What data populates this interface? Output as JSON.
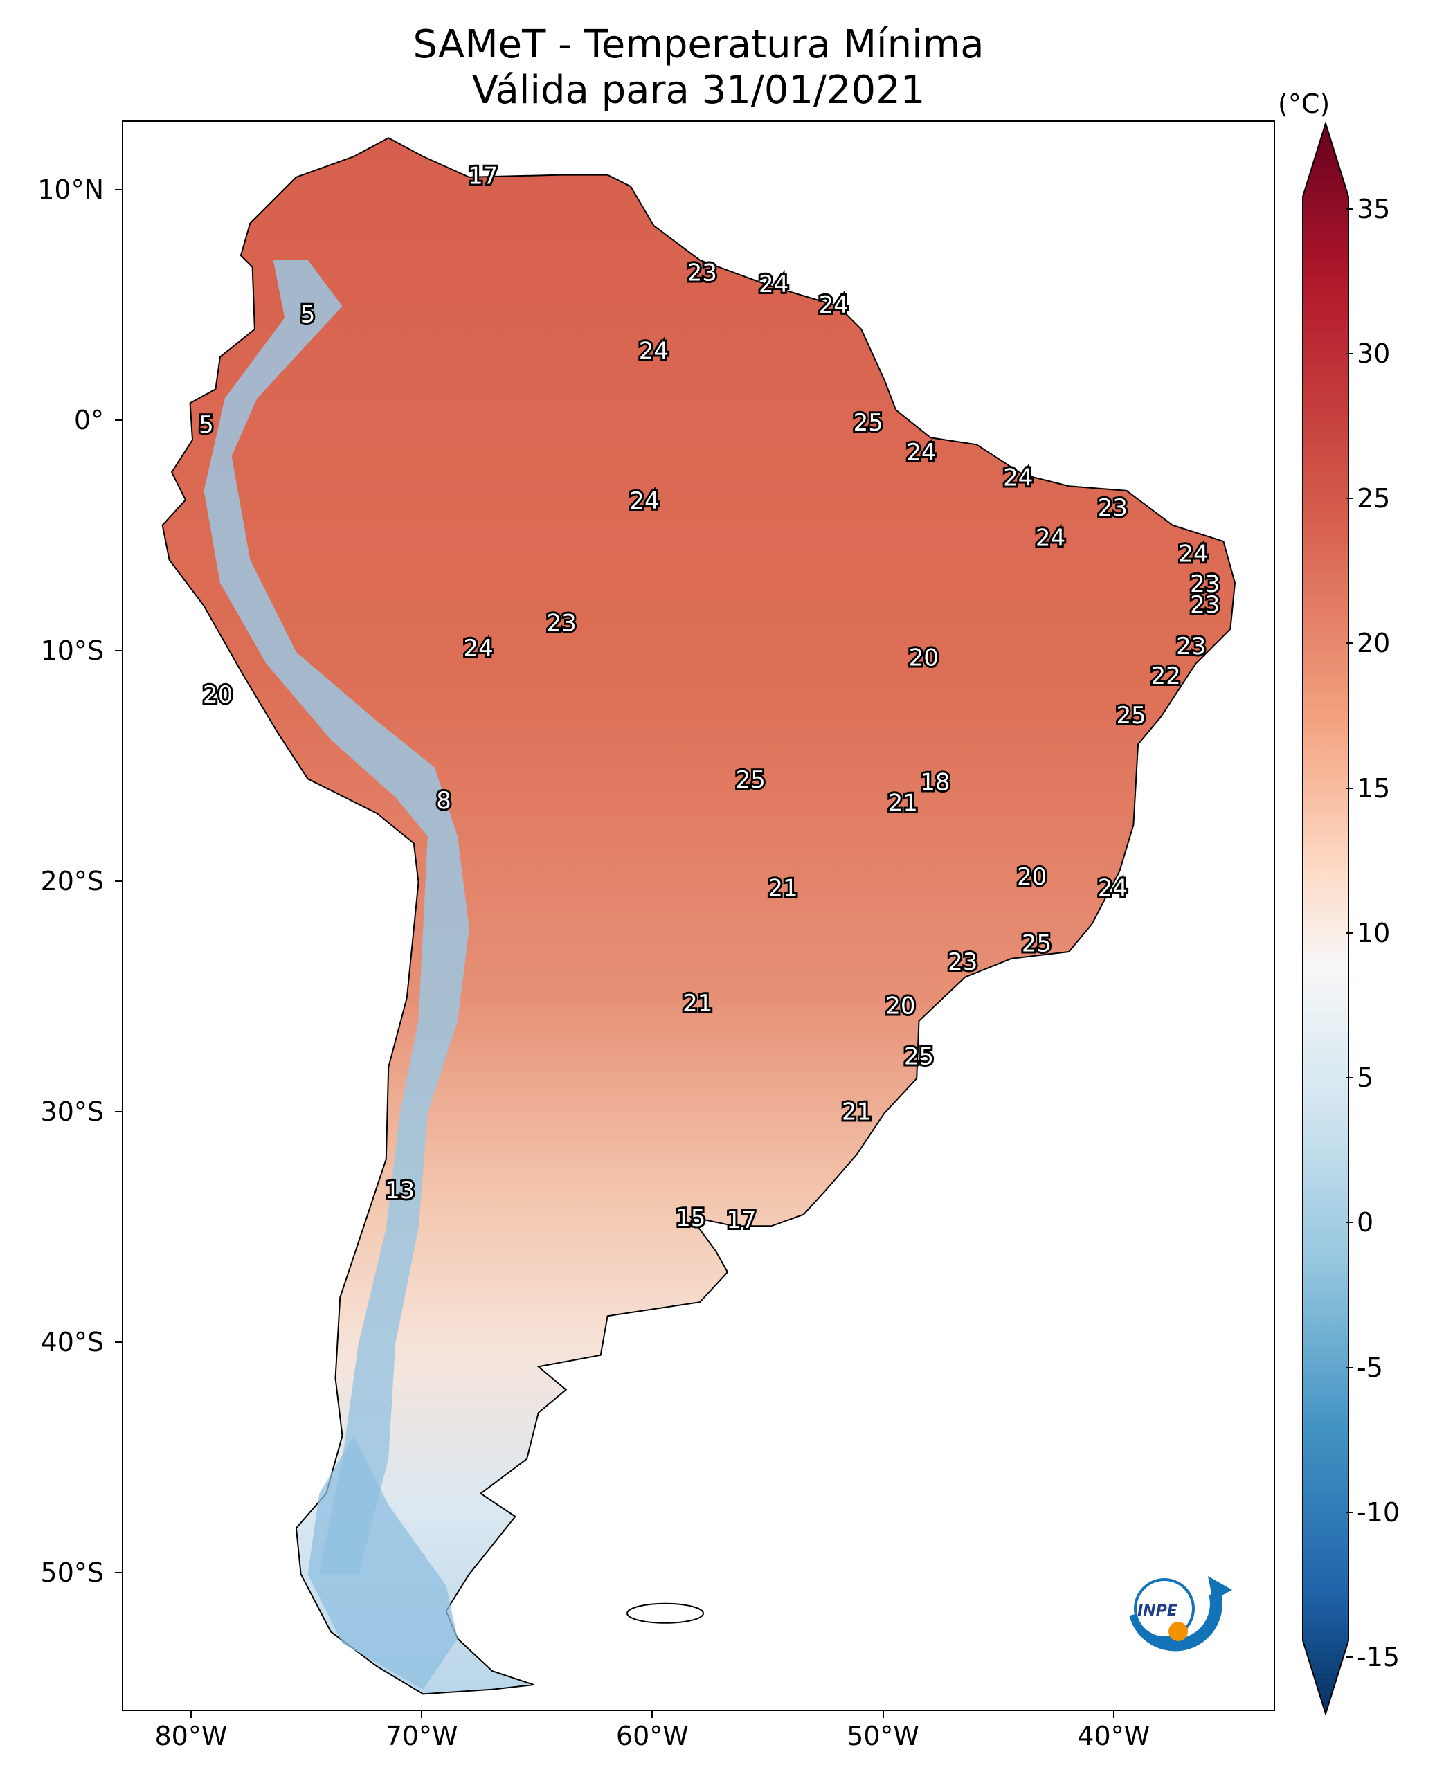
{
  "title": {
    "line1": "SAMeT - Temperatura Mínima",
    "line2": "Válida para 31/01/2021"
  },
  "axes": {
    "lat_ticks": [
      {
        "lat": 10,
        "label": "10°N"
      },
      {
        "lat": 0,
        "label": "0°"
      },
      {
        "lat": -10,
        "label": "10°S"
      },
      {
        "lat": -20,
        "label": "20°S"
      },
      {
        "lat": -30,
        "label": "30°S"
      },
      {
        "lat": -40,
        "label": "40°S"
      },
      {
        "lat": -50,
        "label": "50°S"
      }
    ],
    "lon_ticks": [
      {
        "lon": -80,
        "label": "80°W"
      },
      {
        "lon": -70,
        "label": "70°W"
      },
      {
        "lon": -60,
        "label": "60°W"
      },
      {
        "lon": -50,
        "label": "50°W"
      },
      {
        "lon": -40,
        "label": "40°W"
      }
    ],
    "lon_range": [
      -83,
      -33
    ],
    "lat_range": [
      -56,
      13
    ]
  },
  "colorbar": {
    "unit": "(°C)",
    "range": [
      -17,
      38
    ],
    "ticks": [
      35,
      30,
      25,
      20,
      15,
      10,
      5,
      0,
      -5,
      -10,
      -15
    ],
    "tick_labels": [
      "35",
      "30",
      "25",
      "20",
      "15",
      "10",
      "5",
      "0",
      "-5",
      "-10",
      "-15"
    ]
  },
  "colors": {
    "hot": "#d6604d",
    "warm": "#e08a6e",
    "mild": "#f4c3a8",
    "neutral": "#f7f2ef",
    "cool": "#a8cde4",
    "cold": "#4a91c4"
  },
  "station_labels": [
    {
      "value": "17",
      "lon": -67.4,
      "lat": 10.6
    },
    {
      "value": "23",
      "lon": -57.9,
      "lat": 6.4
    },
    {
      "value": "24",
      "lon": -54.8,
      "lat": 5.9
    },
    {
      "value": "24",
      "lon": -52.2,
      "lat": 5.0
    },
    {
      "value": "5",
      "lon": -75.0,
      "lat": 4.6
    },
    {
      "value": "24",
      "lon": -60.0,
      "lat": 3.0
    },
    {
      "value": "5",
      "lon": -79.4,
      "lat": -0.2
    },
    {
      "value": "25",
      "lon": -50.7,
      "lat": -0.1
    },
    {
      "value": "24",
      "lon": -48.4,
      "lat": -1.4
    },
    {
      "value": "24",
      "lon": -44.2,
      "lat": -2.5
    },
    {
      "value": "24",
      "lon": -60.4,
      "lat": -3.5
    },
    {
      "value": "23",
      "lon": -40.1,
      "lat": -3.8
    },
    {
      "value": "24",
      "lon": -42.8,
      "lat": -5.1
    },
    {
      "value": "24",
      "lon": -36.6,
      "lat": -5.8
    },
    {
      "value": "23",
      "lon": -36.1,
      "lat": -7.1
    },
    {
      "value": "23",
      "lon": -36.1,
      "lat": -8.0
    },
    {
      "value": "23",
      "lon": -64.0,
      "lat": -8.8
    },
    {
      "value": "23",
      "lon": -36.7,
      "lat": -9.8
    },
    {
      "value": "24",
      "lon": -67.6,
      "lat": -9.9
    },
    {
      "value": "20",
      "lon": -48.3,
      "lat": -10.3
    },
    {
      "value": "22",
      "lon": -37.8,
      "lat": -11.1
    },
    {
      "value": "20",
      "lon": -78.9,
      "lat": -11.9
    },
    {
      "value": "25",
      "lon": -39.3,
      "lat": -12.8
    },
    {
      "value": "25",
      "lon": -55.8,
      "lat": -15.6
    },
    {
      "value": "18",
      "lon": -47.8,
      "lat": -15.7
    },
    {
      "value": "8",
      "lon": -69.1,
      "lat": -16.5
    },
    {
      "value": "21",
      "lon": -49.2,
      "lat": -16.6
    },
    {
      "value": "20",
      "lon": -43.6,
      "lat": -19.8
    },
    {
      "value": "21",
      "lon": -54.4,
      "lat": -20.3
    },
    {
      "value": "24",
      "lon": -40.1,
      "lat": -20.3
    },
    {
      "value": "25",
      "lon": -43.4,
      "lat": -22.7
    },
    {
      "value": "23",
      "lon": -46.6,
      "lat": -23.5
    },
    {
      "value": "21",
      "lon": -58.1,
      "lat": -25.3
    },
    {
      "value": "20",
      "lon": -49.3,
      "lat": -25.4
    },
    {
      "value": "25",
      "lon": -48.5,
      "lat": -27.6
    },
    {
      "value": "21",
      "lon": -51.2,
      "lat": -30.0
    },
    {
      "value": "13",
      "lon": -71.0,
      "lat": -33.4
    },
    {
      "value": "15",
      "lon": -58.4,
      "lat": -34.6
    },
    {
      "value": "17",
      "lon": -56.2,
      "lat": -34.7
    }
  ],
  "logo": {
    "text": "INPE"
  }
}
